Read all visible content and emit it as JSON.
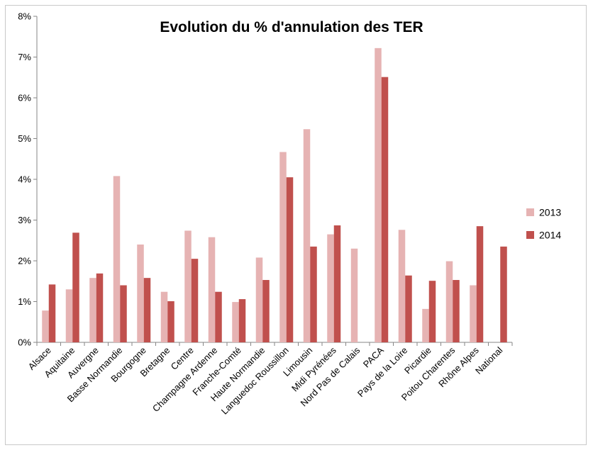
{
  "chart_data": {
    "type": "bar",
    "title": "Evolution  du % d'annulation  des TER",
    "ylim": [
      0,
      8
    ],
    "yticks": [
      "0%",
      "1%",
      "2%",
      "3%",
      "4%",
      "5%",
      "6%",
      "7%",
      "8%"
    ],
    "grid": false,
    "legend": "right",
    "categories": [
      "Alsace",
      "Aquitaine",
      "Auvergne",
      "Basse Normandie",
      "Bourgogne",
      "Bretagne",
      "Centre",
      "Champagne Ardenne",
      "Franche-Comté",
      "Haute Normandie",
      "Languedoc Roussillon",
      "Limousin",
      "Midi Pyrénées",
      "Nord Pas de Calais",
      "PACA",
      "Pays de la Loire",
      "Picardie",
      "Poitou Charentes",
      "Rhône Alpes",
      "National"
    ],
    "series": [
      {
        "name": "2013",
        "color": "#e6b3b3",
        "values": [
          0.78,
          1.3,
          1.58,
          4.08,
          2.4,
          1.24,
          2.74,
          2.58,
          0.99,
          2.08,
          4.67,
          5.23,
          2.65,
          2.3,
          7.22,
          2.76,
          0.82,
          1.99,
          1.4,
          null
        ]
      },
      {
        "name": "2014",
        "color": "#c0504d",
        "values": [
          1.42,
          2.69,
          1.69,
          1.4,
          1.58,
          1.01,
          2.05,
          1.24,
          1.06,
          1.53,
          4.05,
          2.35,
          2.87,
          null,
          6.51,
          1.64,
          1.51,
          1.53,
          2.85,
          2.35
        ]
      }
    ]
  }
}
